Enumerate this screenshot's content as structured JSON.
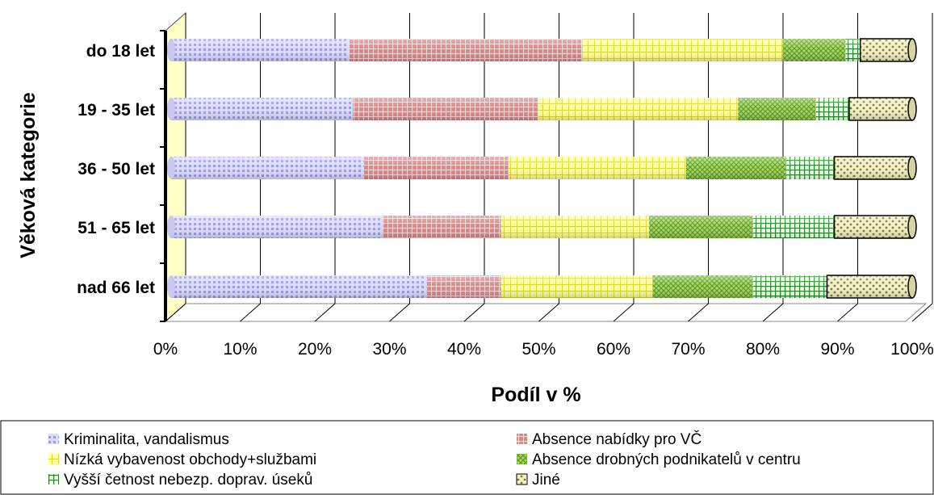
{
  "chart_data": {
    "type": "bar",
    "orientation": "horizontal",
    "stacked": "100%",
    "categories": [
      "do 18 let",
      "19 - 35 let",
      "36 - 50 let",
      "51 - 65 let",
      "nad 66 let"
    ],
    "series": [
      {
        "name": "Kriminalita, vandalismus",
        "values": [
          24,
          24.5,
          26,
          28.5,
          34.5
        ],
        "color": "#b8b8ec"
      },
      {
        "name": "Absence nabídky pro VČ",
        "values": [
          31.5,
          25,
          19.5,
          16,
          10
        ],
        "color": "#ec7a7a"
      },
      {
        "name": "Nízká vybavenost obchody+službami",
        "values": [
          27,
          27,
          24,
          20,
          20.5
        ],
        "color": "#f2f24e"
      },
      {
        "name": "Absence drobných podnikatelů v centru",
        "values": [
          8.5,
          10.5,
          13.5,
          14,
          13.5
        ],
        "color": "#8ac83c"
      },
      {
        "name": "Vyšší četnost nebezp. doprav. úseků",
        "values": [
          2,
          4.5,
          6.5,
          11,
          10
        ],
        "color": "#2ea02e"
      },
      {
        "name": "Jiné",
        "values": [
          7,
          8.5,
          10.5,
          10.5,
          11.5
        ],
        "color": "#b8b078"
      }
    ],
    "xlabel": "Podíl v %",
    "ylabel": "Věková kategorie",
    "xlim": [
      0,
      100
    ],
    "xticks": [
      "0%",
      "10%",
      "20%",
      "30%",
      "40%",
      "50%",
      "60%",
      "70%",
      "80%",
      "90%",
      "100%"
    ],
    "grid": true,
    "legend_position": "bottom"
  }
}
